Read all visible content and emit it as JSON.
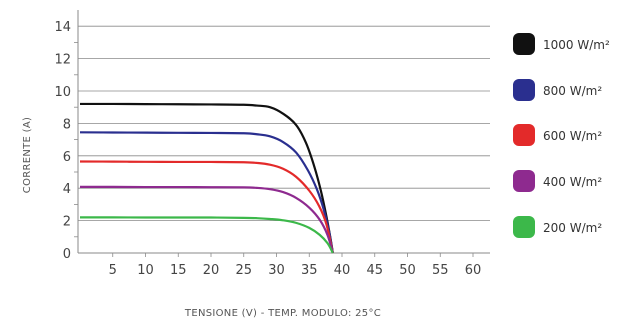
{
  "chart_data": {
    "type": "line",
    "xlabel": "TENSIONE (V) - TEMP. MODULO: 25°C",
    "ylabel": "CORRENTE (A)",
    "xlim": [
      0,
      62
    ],
    "ylim": [
      0,
      15
    ],
    "x_ticks": [
      5,
      10,
      15,
      20,
      25,
      30,
      35,
      40,
      45,
      50,
      55,
      60
    ],
    "y_ticks": [
      0,
      2,
      4,
      6,
      8,
      10,
      12,
      14
    ],
    "grid": "horizontal",
    "legend_position": "right",
    "series": [
      {
        "name": "1000 W/m²",
        "color": "#111111",
        "points": [
          [
            0,
            9.2
          ],
          [
            5,
            9.2
          ],
          [
            10,
            9.19
          ],
          [
            15,
            9.18
          ],
          [
            20,
            9.17
          ],
          [
            25,
            9.15
          ],
          [
            27,
            9.1
          ],
          [
            29,
            9.0
          ],
          [
            31,
            8.6
          ],
          [
            33,
            7.9
          ],
          [
            34.5,
            6.8
          ],
          [
            35.8,
            5.3
          ],
          [
            36.8,
            3.8
          ],
          [
            37.6,
            2.3
          ],
          [
            38.2,
            1.0
          ],
          [
            38.6,
            0
          ]
        ]
      },
      {
        "name": "800 W/m²",
        "color": "#2a2f8f",
        "points": [
          [
            0,
            7.45
          ],
          [
            5,
            7.44
          ],
          [
            10,
            7.43
          ],
          [
            15,
            7.42
          ],
          [
            20,
            7.41
          ],
          [
            25,
            7.39
          ],
          [
            27,
            7.33
          ],
          [
            29,
            7.2
          ],
          [
            31,
            6.85
          ],
          [
            33,
            6.2
          ],
          [
            34.8,
            5.1
          ],
          [
            36.2,
            3.9
          ],
          [
            37.2,
            2.7
          ],
          [
            38.0,
            1.4
          ],
          [
            38.6,
            0
          ]
        ]
      },
      {
        "name": "600 W/m²",
        "color": "#e32a2a",
        "points": [
          [
            0,
            5.65
          ],
          [
            5,
            5.64
          ],
          [
            10,
            5.63
          ],
          [
            15,
            5.62
          ],
          [
            20,
            5.62
          ],
          [
            25,
            5.6
          ],
          [
            27,
            5.56
          ],
          [
            29,
            5.45
          ],
          [
            31,
            5.2
          ],
          [
            33,
            4.7
          ],
          [
            35,
            3.85
          ],
          [
            36.5,
            2.9
          ],
          [
            37.6,
            1.8
          ],
          [
            38.6,
            0
          ]
        ]
      },
      {
        "name": "400 W/m²",
        "color": "#8e2a8f",
        "points": [
          [
            0,
            4.08
          ],
          [
            5,
            4.08
          ],
          [
            10,
            4.07
          ],
          [
            15,
            4.07
          ],
          [
            20,
            4.06
          ],
          [
            25,
            4.05
          ],
          [
            27,
            4.02
          ],
          [
            29,
            3.94
          ],
          [
            31,
            3.76
          ],
          [
            33,
            3.4
          ],
          [
            35,
            2.8
          ],
          [
            36.6,
            2.05
          ],
          [
            37.8,
            1.1
          ],
          [
            38.6,
            0
          ]
        ]
      },
      {
        "name": "200 W/m²",
        "color": "#3cb84a",
        "points": [
          [
            0,
            2.2
          ],
          [
            5,
            2.2
          ],
          [
            10,
            2.19
          ],
          [
            15,
            2.19
          ],
          [
            20,
            2.19
          ],
          [
            25,
            2.17
          ],
          [
            27,
            2.15
          ],
          [
            29,
            2.1
          ],
          [
            31,
            2.02
          ],
          [
            33,
            1.86
          ],
          [
            35,
            1.55
          ],
          [
            36.6,
            1.12
          ],
          [
            37.8,
            0.6
          ],
          [
            38.6,
            0
          ]
        ]
      }
    ]
  }
}
